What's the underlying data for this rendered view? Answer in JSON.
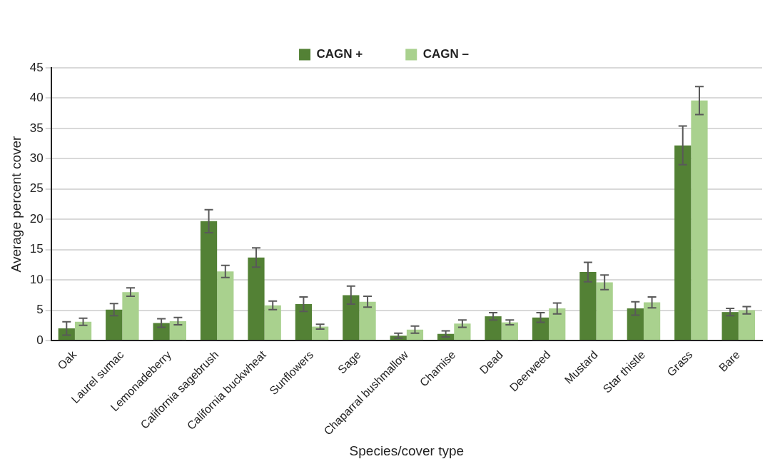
{
  "chart_data": {
    "type": "bar",
    "xlabel": "Species/cover type",
    "ylabel": "Average percent cover",
    "categories": [
      "Oak",
      "Laurel sumac",
      "Lemonadeberry",
      "California sagebrush",
      "California buckwheat",
      "Sunflowers",
      "Sage",
      "Chaparral bushmallow",
      "Chamise",
      "Dead",
      "Deerweed",
      "Mustard",
      "Star thistle",
      "Grass",
      "Bare"
    ],
    "series": [
      {
        "name": "CAGN +",
        "color": "#538135",
        "values": [
          2.0,
          5.1,
          2.9,
          19.7,
          13.7,
          6.0,
          7.5,
          0.8,
          1.1,
          4.0,
          3.8,
          11.3,
          5.3,
          32.2,
          4.7
        ],
        "errors": [
          1.1,
          1.0,
          0.7,
          1.9,
          1.6,
          1.2,
          1.5,
          0.4,
          0.5,
          0.6,
          0.8,
          1.6,
          1.1,
          3.2,
          0.6
        ]
      },
      {
        "name": "CAGN –",
        "color": "#a9d18e",
        "values": [
          3.1,
          8.0,
          3.2,
          11.4,
          5.8,
          2.3,
          6.4,
          1.8,
          2.8,
          3.0,
          5.3,
          9.6,
          6.3,
          39.6,
          5.0
        ],
        "errors": [
          0.6,
          0.7,
          0.6,
          1.0,
          0.7,
          0.4,
          0.9,
          0.6,
          0.6,
          0.4,
          0.9,
          1.2,
          0.9,
          2.3,
          0.6
        ]
      }
    ],
    "ylim": [
      0,
      45
    ],
    "yticks": [
      0,
      5,
      10,
      15,
      20,
      25,
      30,
      35,
      40,
      45
    ],
    "grid": "y",
    "legend": "top"
  }
}
